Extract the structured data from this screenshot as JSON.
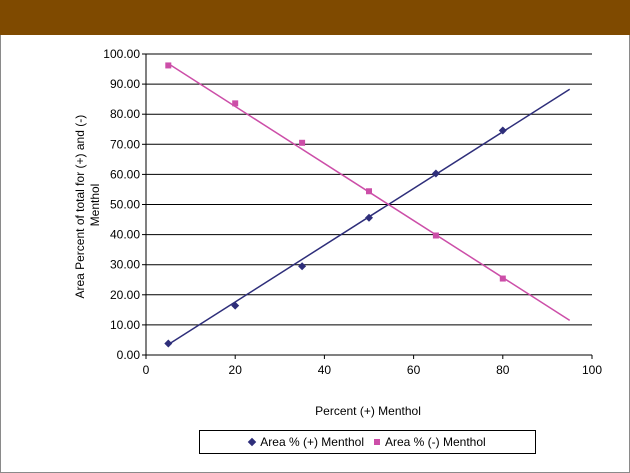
{
  "colors": {
    "header": "#7f4a00",
    "series_plus": "#2e2e7a",
    "series_minus": "#cc4ea8"
  },
  "chart_data": {
    "type": "scatter",
    "title": "",
    "xlabel": "Percent (+) Menthol",
    "ylabel_lines": [
      "Area Percent of total for (+) and (-)",
      "Menthol"
    ],
    "xlim": [
      0,
      100
    ],
    "ylim": [
      0,
      100
    ],
    "x_ticks": [
      "0",
      "20",
      "40",
      "60",
      "80",
      "100"
    ],
    "y_ticks": [
      "0.00",
      "10.00",
      "20.00",
      "30.00",
      "40.00",
      "50.00",
      "60.00",
      "70.00",
      "80.00",
      "90.00",
      "100.00"
    ],
    "grid": "horizontal",
    "legend_position": "bottom",
    "series": [
      {
        "name": "Area % (+) Menthol",
        "marker": "diamond",
        "color": "#2e2e7a",
        "x": [
          5,
          20,
          35,
          50,
          65,
          80
        ],
        "y": [
          3.8,
          16.4,
          29.5,
          45.6,
          60.3,
          74.6
        ],
        "trendline": {
          "x": [
            5,
            95
          ],
          "y": [
            3.5,
            88.3
          ]
        }
      },
      {
        "name": "Area % (-) Menthol",
        "marker": "square",
        "color": "#cc4ea8",
        "x": [
          5,
          20,
          35,
          50,
          65,
          80
        ],
        "y": [
          96.2,
          83.6,
          70.5,
          54.4,
          39.7,
          25.4
        ],
        "trendline": {
          "x": [
            5,
            95
          ],
          "y": [
            96.8,
            11.5
          ]
        }
      }
    ]
  }
}
